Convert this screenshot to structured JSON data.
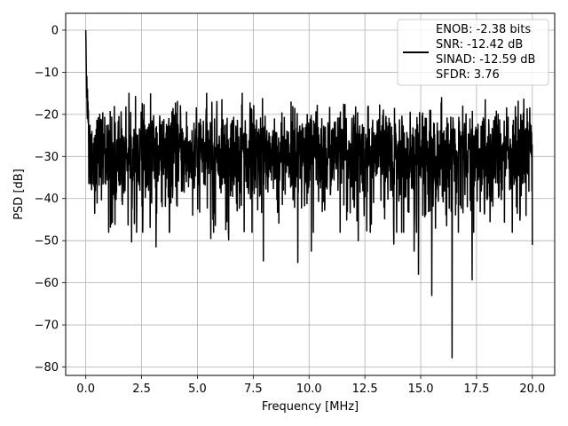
{
  "chart_data": {
    "type": "line",
    "xlabel": "Frequency [MHz]",
    "ylabel": "PSD [dB]",
    "xlim": [
      -0.9,
      21.0
    ],
    "ylim": [
      -82,
      4
    ],
    "grid": true,
    "xticks": [
      0.0,
      2.5,
      5.0,
      7.5,
      10.0,
      12.5,
      15.0,
      17.5,
      20.0
    ],
    "xtick_labels": [
      "0.0",
      "2.5",
      "5.0",
      "7.5",
      "10.0",
      "12.5",
      "15.0",
      "17.5",
      "20.0"
    ],
    "yticks": [
      0,
      -10,
      -20,
      -30,
      -40,
      -50,
      -60,
      -70,
      -80
    ],
    "ytick_labels": [
      "0",
      "−10",
      "−20",
      "−30",
      "−40",
      "−50",
      "−60",
      "−70",
      "−80"
    ],
    "series": [
      {
        "color": "#000000",
        "x_range": [
          0.0,
          20.0
        ],
        "num_points": 2048,
        "noise_floor_db": -29,
        "peak": {
          "x": 0.0,
          "y": 0.0
        },
        "notable_points": [
          {
            "x": 0.4,
            "y": -43.5
          },
          {
            "x": 1.1,
            "y": -46.8
          },
          {
            "x": 2.05,
            "y": -50.3
          },
          {
            "x": 3.15,
            "y": -51.5
          },
          {
            "x": 5.6,
            "y": -49.5
          },
          {
            "x": 6.4,
            "y": -49.8
          },
          {
            "x": 7.95,
            "y": -54.8
          },
          {
            "x": 9.5,
            "y": -55.2
          },
          {
            "x": 10.1,
            "y": -52.5
          },
          {
            "x": 12.2,
            "y": -50.0
          },
          {
            "x": 13.8,
            "y": -50.8
          },
          {
            "x": 14.7,
            "y": -52.5
          },
          {
            "x": 14.9,
            "y": -58.0
          },
          {
            "x": 15.5,
            "y": -63.0
          },
          {
            "x": 16.4,
            "y": -77.8
          },
          {
            "x": 17.3,
            "y": -59.3
          },
          {
            "x": 18.1,
            "y": -45.5
          },
          {
            "x": 19.1,
            "y": -48.0
          },
          {
            "x": 20.0,
            "y": -51.0
          }
        ]
      }
    ],
    "legend": {
      "placement": "top-right",
      "lines": [
        "ENOB: -2.38 bits",
        "SNR: -12.42 dB",
        "SINAD: -12.59 dB",
        "SFDR: 3.76"
      ]
    }
  }
}
